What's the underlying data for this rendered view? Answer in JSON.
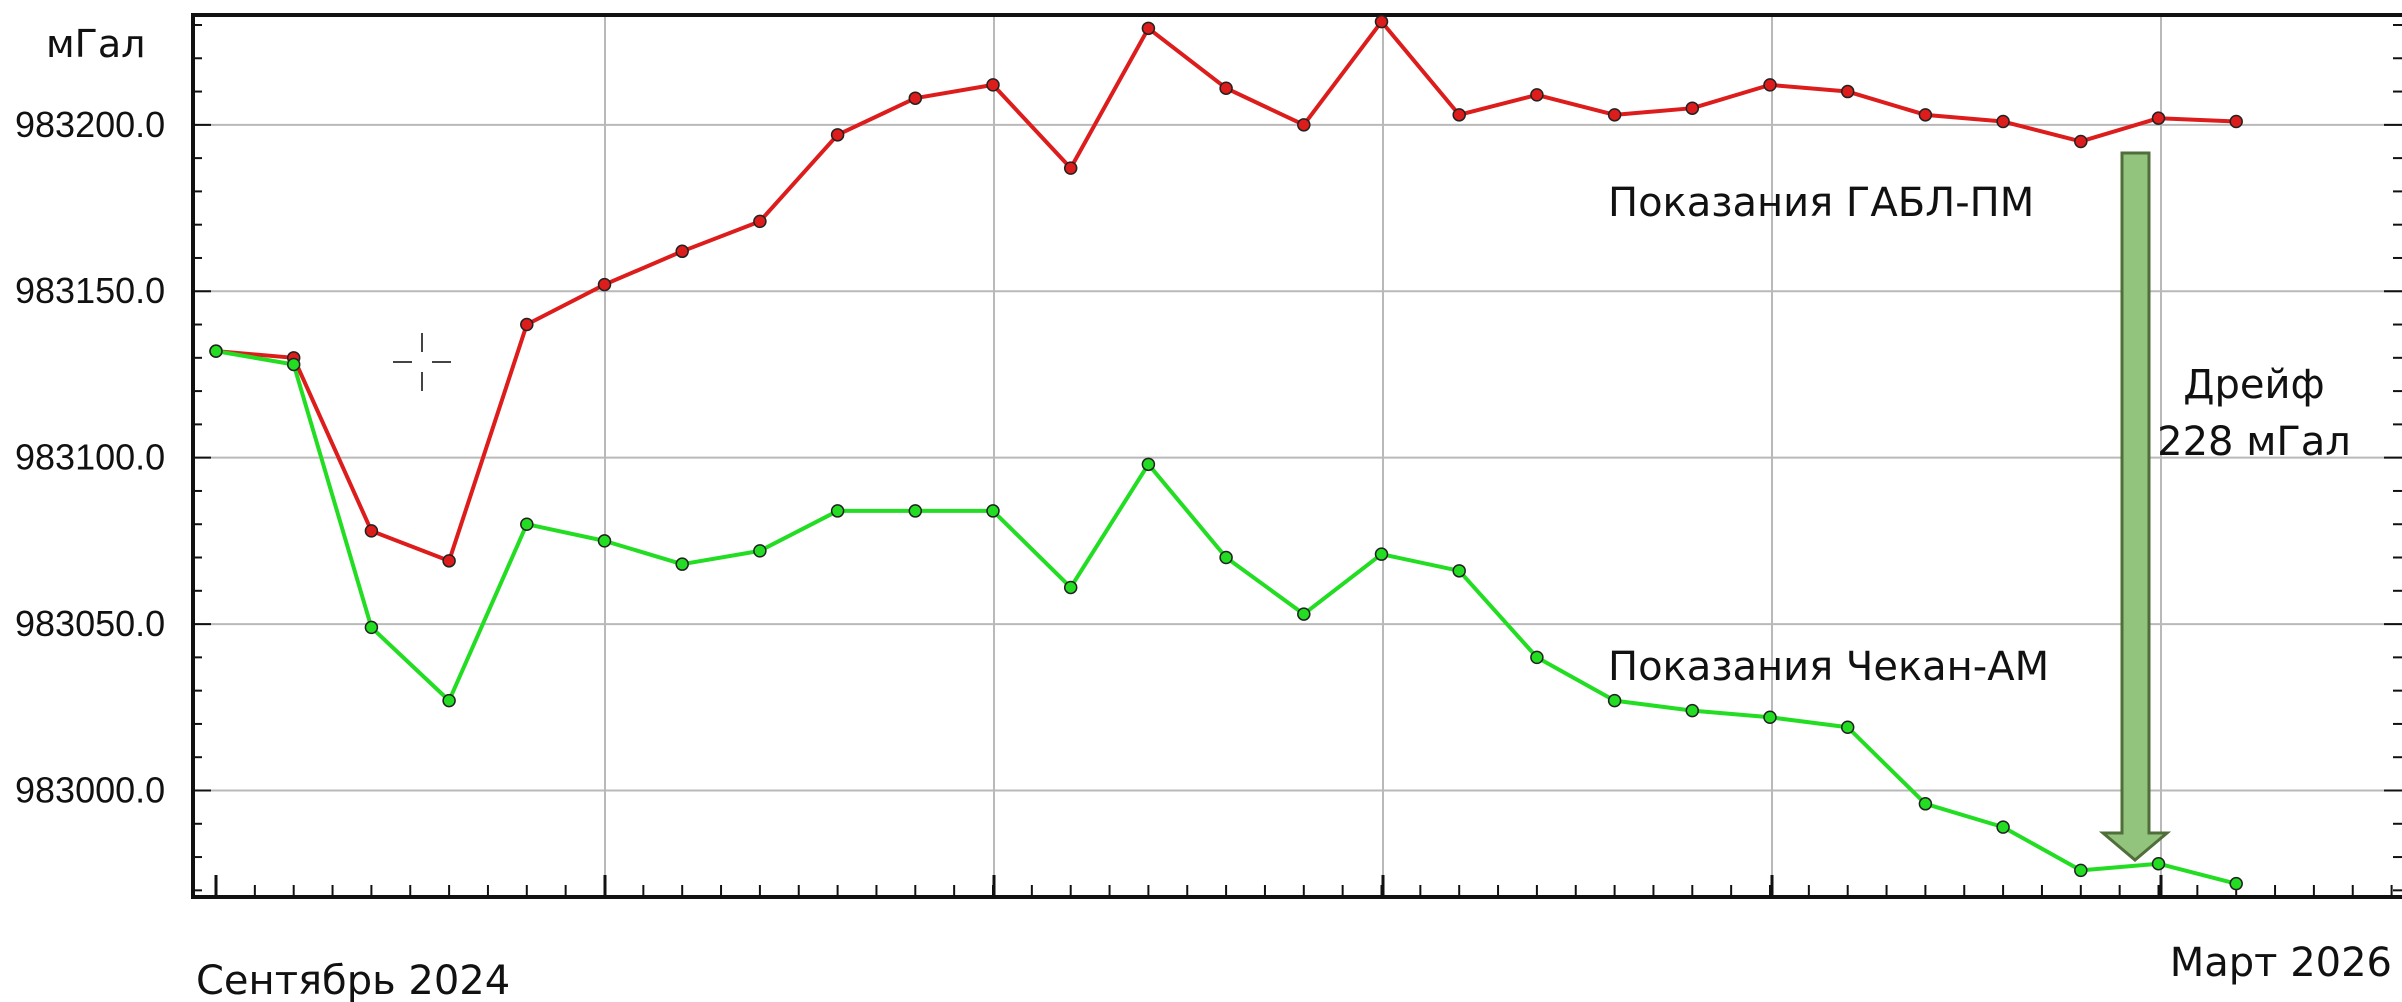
{
  "chart_data": {
    "type": "line",
    "ylabel": "мГал",
    "y_ticks": [
      "983000.0",
      "983050.0",
      "983100.0",
      "983150.0",
      "983200.0"
    ],
    "ylim": [
      982968,
      983233
    ],
    "x_start_label": "Сентябрь 2024",
    "x_end_label": "Март 2026",
    "x": [
      0,
      1,
      2,
      3,
      4,
      5,
      6,
      7,
      8,
      9,
      10,
      11,
      12,
      13,
      14,
      15,
      16,
      17,
      18,
      19,
      20,
      21,
      22,
      23,
      24,
      25,
      26
    ],
    "series": [
      {
        "name": "Показания ГАБЛ-ПМ",
        "color": "#dd1c1c",
        "values": [
          983132,
          983130,
          983078,
          983069,
          983140,
          983152,
          983162,
          983171,
          983197,
          983208,
          983212,
          983187,
          983229,
          983211,
          983200,
          983231,
          983203,
          983209,
          983203,
          983205,
          983212,
          983210,
          983203,
          983201,
          983195,
          983202,
          983201
        ]
      },
      {
        "name": "Показания Чекан-АМ",
        "color": "#22dd22",
        "values": [
          983132,
          983128,
          983049,
          983027,
          983080,
          983075,
          983068,
          983072,
          983084,
          983084,
          983084,
          983061,
          983098,
          983070,
          983053,
          983071,
          983066,
          983040,
          983027,
          983024,
          983022,
          983019,
          982996,
          982989,
          982976,
          982978,
          982972
        ]
      }
    ],
    "annotations": {
      "drift_line1": "Дрейф",
      "drift_line2": "228 мГал",
      "arrow_color": "#93c47d"
    },
    "grid": true
  }
}
